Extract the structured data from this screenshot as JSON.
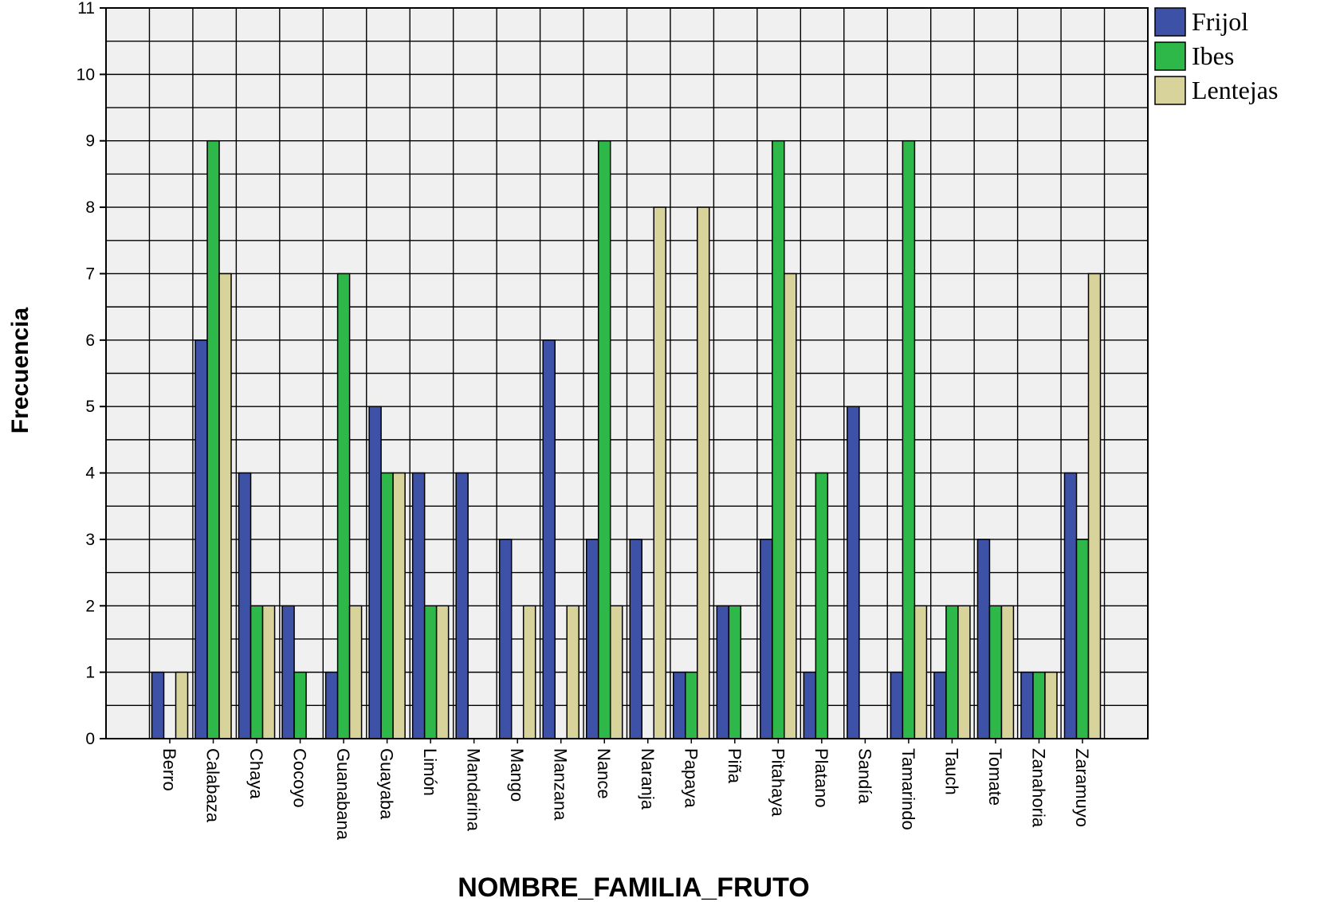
{
  "chart_data": {
    "type": "bar",
    "title": "",
    "xlabel": "NOMBRE_FAMILIA_FRUTO",
    "ylabel": "Frecuencia",
    "ylim": [
      0,
      11
    ],
    "yticks": [
      "0",
      "1",
      "2",
      "3",
      "4",
      "5",
      "6",
      "7",
      "8",
      "9",
      "10",
      "11"
    ],
    "grid": true,
    "legend_position": "top-right",
    "categories": [
      "Berro",
      "Calabaza",
      "Chaya",
      "Cocoyo",
      "Guanabana",
      "Guayaba",
      "Limón",
      "Mandarina",
      "Mango",
      "Manzana",
      "Nance",
      "Naranja",
      "Papaya",
      "Piña",
      "Pitahaya",
      "Platano",
      "Sandía",
      "Tamarindo",
      "Tauch",
      "Tomate",
      "Zanahoria",
      "Zaramuyo"
    ],
    "series": [
      {
        "name": "Frijol",
        "color": "#3d52a6",
        "values": [
          1,
          6,
          4,
          2,
          1,
          5,
          4,
          4,
          3,
          6,
          3,
          3,
          1,
          2,
          3,
          1,
          5,
          1,
          1,
          3,
          1,
          4
        ]
      },
      {
        "name": "Ibes",
        "color": "#2fb84a",
        "values": [
          0,
          9,
          2,
          1,
          7,
          4,
          2,
          0,
          0,
          0,
          9,
          0,
          1,
          2,
          9,
          4,
          0,
          9,
          2,
          2,
          1,
          3
        ]
      },
      {
        "name": "Lentejas",
        "color": "#d8d39a",
        "values": [
          1,
          7,
          2,
          0,
          2,
          4,
          2,
          0,
          2,
          2,
          2,
          8,
          8,
          0,
          7,
          0,
          0,
          2,
          2,
          2,
          1,
          7
        ]
      }
    ]
  }
}
